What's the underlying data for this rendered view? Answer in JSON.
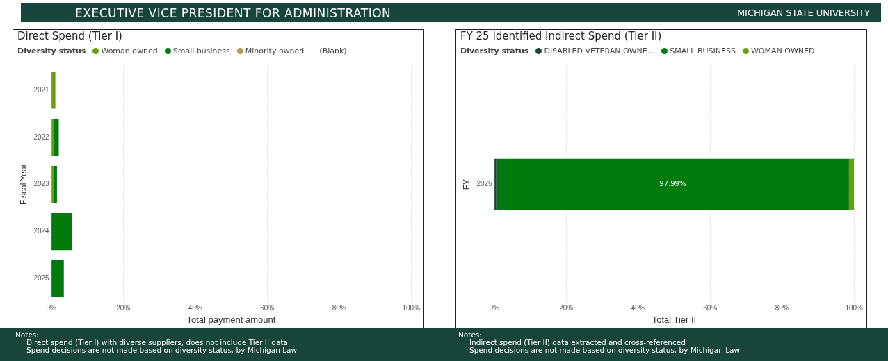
{
  "chart_data": [
    {
      "type": "bar",
      "orientation": "horizontal",
      "stacked": true,
      "title": "Direct Spend (Tier I)",
      "xlabel": "Total payment amount",
      "ylabel": "Fiscal Year",
      "legend_title": "Diversity status",
      "legend": "top left",
      "grid": "x",
      "categories": [
        "2021",
        "2022",
        "2023",
        "2024",
        "2025"
      ],
      "series": [
        {
          "name": "Woman owned",
          "color": "#6a9e0f",
          "values": [
            1.1,
            0.8,
            0.8,
            null,
            null
          ]
        },
        {
          "name": "Small business",
          "color": "#007a0d",
          "values": [
            null,
            1.3,
            0.8,
            5.8,
            3.5
          ]
        },
        {
          "name": "Minority owned",
          "color": "#b09a50",
          "values": [
            0.1,
            null,
            null,
            null,
            null
          ]
        },
        {
          "name": "(Blank)",
          "values": [
            null,
            null,
            null,
            null,
            null
          ]
        }
      ],
      "xlim": [
        0,
        100
      ],
      "xticks": [
        {
          "value": 0,
          "label": "0%"
        },
        {
          "value": 20,
          "label": "20%"
        },
        {
          "value": 40,
          "label": "40%"
        },
        {
          "value": 60,
          "label": "60%"
        },
        {
          "value": 80,
          "label": "80%"
        },
        {
          "value": 100,
          "label": "100%"
        }
      ],
      "annotations": [
        "EXECUTIVE VICE PRESIDENT FOR ADMINISTRATION",
        "MICHIGAN STATE UNIVERSITY",
        "Notes:",
        "Direct spend (Tier I) with diverse suppliers, does not include Tier II data",
        "Spend decisions are not made based on diversity status, by Michigan Law"
      ]
    },
    {
      "type": "bar",
      "orientation": "horizontal",
      "stacked": true,
      "title": "FY 25 Identified Indirect Spend (Tier II)",
      "xlabel": "Total Tier II",
      "ylabel": "FY",
      "legend_title": "Diversity status",
      "legend": "top left",
      "grid": "x",
      "categories": [
        "2025"
      ],
      "series": [
        {
          "name": "DISABLED VETERAN OWNE...",
          "color": "#18453b",
          "values": [
            0.6
          ]
        },
        {
          "name": "SMALL BUSINESS",
          "color": "#007a0d",
          "values": [
            97.99
          ],
          "value_labels": [
            "97.99%"
          ]
        },
        {
          "name": "WOMAN OWNED",
          "color": "#6a9e0f",
          "values": [
            1.4
          ]
        }
      ],
      "xlim": [
        0,
        100
      ],
      "xticks": [
        {
          "value": 0,
          "label": "0%"
        },
        {
          "value": 20,
          "label": "20%"
        },
        {
          "value": 40,
          "label": "40%"
        },
        {
          "value": 60,
          "label": "60%"
        },
        {
          "value": 80,
          "label": "80%"
        },
        {
          "value": 100,
          "label": "100%"
        }
      ],
      "annotations": [
        "Notes:",
        "Indirect spend (Tier II) data extracted and cross-referenced",
        "Spend decisions are not made based on diversity status, by Michigan Law"
      ]
    }
  ]
}
